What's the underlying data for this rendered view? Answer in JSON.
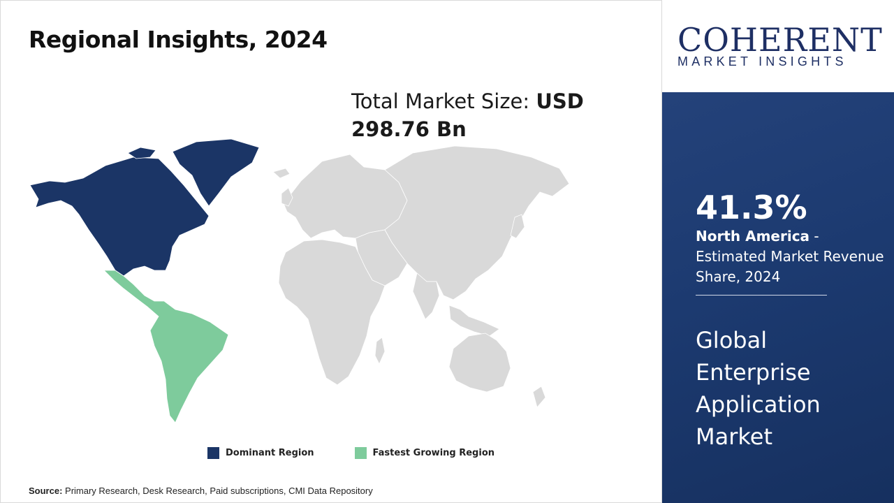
{
  "title": "Regional Insights, 2024",
  "market_size": {
    "label": "Total Market Size: ",
    "value": "USD 298.76 Bn"
  },
  "legend": [
    {
      "label": "Dominant Region",
      "color": "#1b3566"
    },
    {
      "label": "Fastest Growing Region",
      "color": "#7ecb9c"
    }
  ],
  "map": {
    "dominant_region": "North America",
    "fastest_growing_region": "Latin America",
    "other_color": "#d9d9d9"
  },
  "source": {
    "label": "Source:",
    "text": " Primary Research, Desk Research, Paid subscriptions, CMI Data Repository"
  },
  "logo": {
    "name": "COHERENT",
    "tagline": "MARKET INSIGHTS"
  },
  "highlight": {
    "share": "41.3%",
    "region": "North America",
    "description": " - Estimated Market Revenue Share, 2024"
  },
  "market_name": "Global Enterprise Application Market",
  "colors": {
    "panel": "#1c3a70",
    "logo_text": "#1e2f64"
  }
}
